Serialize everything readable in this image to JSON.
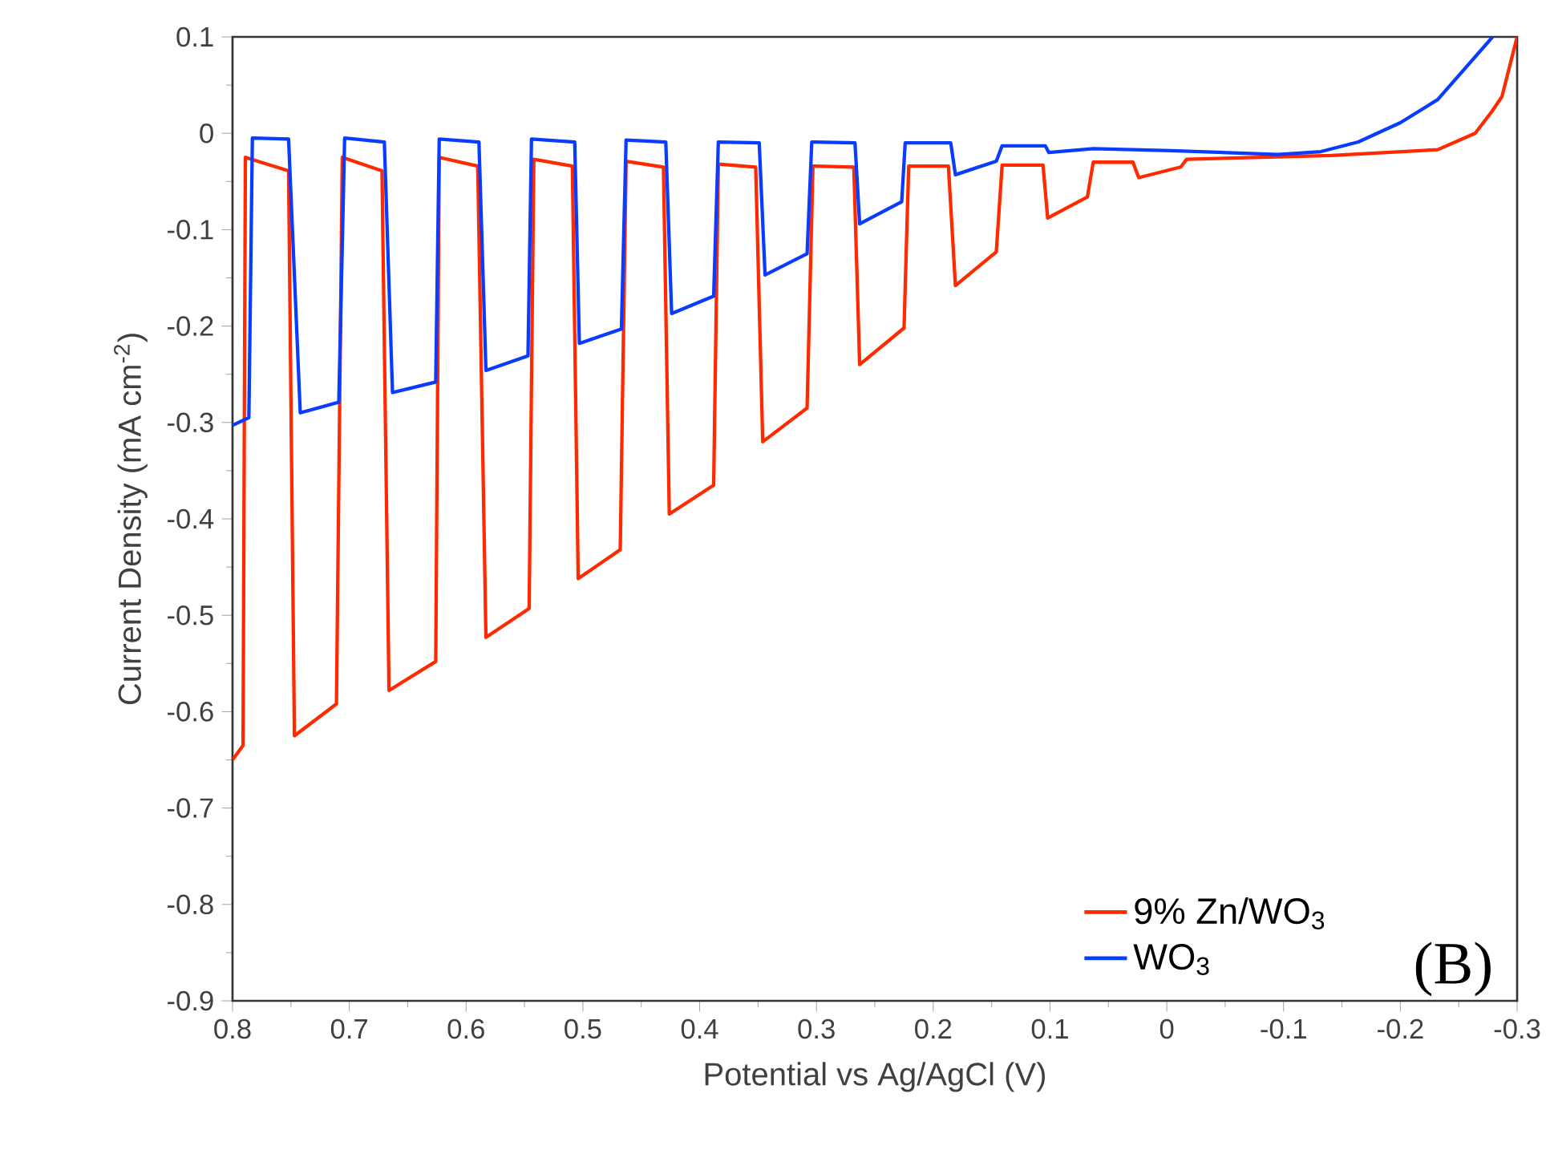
{
  "chart_data": {
    "type": "line",
    "xlabel": "Potential vs Ag/AgCl (V)",
    "ylabel": "Current Density (mA cm$^{-2}$)",
    "xlim": [
      0.8,
      -0.3
    ],
    "ylim": [
      -0.9,
      0.1
    ],
    "xticks": [
      0.8,
      0.7,
      0.6,
      0.5,
      0.4,
      0.3,
      0.2,
      0.1,
      0,
      -0.1,
      -0.2,
      -0.3
    ],
    "yticks": [
      0.1,
      0,
      -0.1,
      -0.2,
      -0.3,
      -0.4,
      -0.5,
      -0.6,
      -0.7,
      -0.8,
      -0.9
    ],
    "legend": "bottom right",
    "annotations": [
      "(B)"
    ],
    "series": [
      {
        "name": "9% Zn/WO$_{3}$",
        "color": "#ff2a00",
        "x": [
          0.8,
          0.791,
          0.789,
          0.752,
          0.747,
          0.711,
          0.706,
          0.672,
          0.666,
          0.626,
          0.623,
          0.59,
          0.583,
          0.546,
          0.542,
          0.509,
          0.504,
          0.468,
          0.463,
          0.431,
          0.426,
          0.388,
          0.384,
          0.352,
          0.346,
          0.308,
          0.303,
          0.268,
          0.263,
          0.225,
          0.221,
          0.187,
          0.181,
          0.146,
          0.141,
          0.106,
          0.102,
          0.068,
          0.063,
          0.029,
          0.024,
          -0.012,
          -0.017,
          -0.141,
          -0.232,
          -0.264,
          -0.278,
          -0.287,
          -0.3
        ],
        "values": [
          -0.65,
          -0.635,
          -0.025,
          -0.039,
          -0.625,
          -0.592,
          -0.025,
          -0.039,
          -0.578,
          -0.548,
          -0.025,
          -0.034,
          -0.523,
          -0.493,
          -0.027,
          -0.034,
          -0.462,
          -0.432,
          -0.029,
          -0.035,
          -0.395,
          -0.365,
          -0.032,
          -0.035,
          -0.32,
          -0.285,
          -0.034,
          -0.035,
          -0.24,
          -0.202,
          -0.034,
          -0.034,
          -0.158,
          -0.123,
          -0.033,
          -0.033,
          -0.088,
          -0.066,
          -0.03,
          -0.03,
          -0.046,
          -0.035,
          -0.027,
          -0.023,
          -0.017,
          0,
          0.022,
          0.038,
          0.1
        ]
      },
      {
        "name": "WO$_{3}$",
        "color": "#0a3cff",
        "x": [
          0.8,
          0.786,
          0.783,
          0.752,
          0.742,
          0.709,
          0.704,
          0.67,
          0.663,
          0.626,
          0.623,
          0.589,
          0.583,
          0.547,
          0.544,
          0.507,
          0.503,
          0.467,
          0.463,
          0.429,
          0.424,
          0.388,
          0.384,
          0.349,
          0.344,
          0.308,
          0.304,
          0.267,
          0.263,
          0.227,
          0.224,
          0.185,
          0.181,
          0.146,
          0.141,
          0.104,
          0.101,
          0.063,
          -0.004,
          -0.095,
          -0.132,
          -0.164,
          -0.2,
          -0.232,
          -0.279
        ],
        "values": [
          -0.303,
          -0.295,
          -0.005,
          -0.006,
          -0.29,
          -0.279,
          -0.005,
          -0.009,
          -0.269,
          -0.258,
          -0.006,
          -0.009,
          -0.246,
          -0.231,
          -0.006,
          -0.009,
          -0.218,
          -0.203,
          -0.007,
          -0.009,
          -0.187,
          -0.169,
          -0.009,
          -0.01,
          -0.147,
          -0.125,
          -0.009,
          -0.01,
          -0.094,
          -0.071,
          -0.01,
          -0.01,
          -0.043,
          -0.029,
          -0.013,
          -0.013,
          -0.02,
          -0.016,
          -0.018,
          -0.022,
          -0.019,
          -0.009,
          0.011,
          0.035,
          0.1
        ]
      }
    ]
  }
}
